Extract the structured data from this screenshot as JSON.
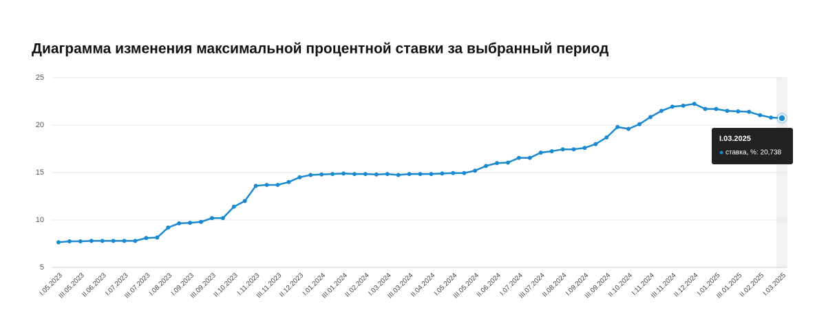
{
  "chart_data": {
    "type": "line",
    "title": "Диаграмма изменения максимальной процентной ставки за выбранный период",
    "categories": [
      "I.05.2023",
      null,
      "III.05.2023",
      null,
      "II.06.2023",
      null,
      "I.07.2023",
      null,
      "III.07.2023",
      null,
      "I.08.2023",
      null,
      "I.09.2023",
      null,
      "III.09.2023",
      null,
      "II.10.2023",
      null,
      "I.11.2023",
      null,
      "III.11.2023",
      null,
      "II.12.2023",
      null,
      "I.01.2024",
      null,
      "III.01.2024",
      null,
      "II.02.2024",
      null,
      "I.03.2024",
      null,
      "III.03.2024",
      null,
      "II.04.2024",
      null,
      "I.05.2024",
      null,
      "III.05.2024",
      null,
      "II.06.2024",
      null,
      "I.07.2024",
      null,
      "III.07.2024",
      null,
      "II.08.2024",
      null,
      "I.09.2024",
      null,
      "III.09.2024",
      null,
      "II.10.2024",
      null,
      "I.11.2024",
      null,
      "III.11.2024",
      null,
      "II.12.2024",
      null,
      "I.01.2025",
      null,
      "III.01.2025",
      null,
      "II.02.2025",
      null,
      "I.03.2025"
    ],
    "series": [
      {
        "name": "ставка, %",
        "color": "#1a88cf",
        "values": [
          7.65,
          7.75,
          7.75,
          7.8,
          7.8,
          7.8,
          7.8,
          7.8,
          8.1,
          8.15,
          9.2,
          9.65,
          9.7,
          9.8,
          10.2,
          10.2,
          11.4,
          12.0,
          13.6,
          13.7,
          13.7,
          14.0,
          14.5,
          14.75,
          14.8,
          14.85,
          14.9,
          14.85,
          14.85,
          14.8,
          14.85,
          14.75,
          14.85,
          14.85,
          14.85,
          14.9,
          14.95,
          14.95,
          15.2,
          15.7,
          16.0,
          16.05,
          16.55,
          16.55,
          17.1,
          17.25,
          17.45,
          17.45,
          17.6,
          18.0,
          18.7,
          19.8,
          19.6,
          20.1,
          20.85,
          21.5,
          21.95,
          22.05,
          22.25,
          21.7,
          21.7,
          21.5,
          21.45,
          21.4,
          21.05,
          20.8,
          20.738
        ]
      }
    ],
    "ylim": [
      5,
      25
    ],
    "yticks": [
      5,
      10,
      15,
      20,
      25
    ],
    "grid": true,
    "tooltip": {
      "title": "I.03.2025",
      "text": "ставка, %: 20,738"
    }
  }
}
